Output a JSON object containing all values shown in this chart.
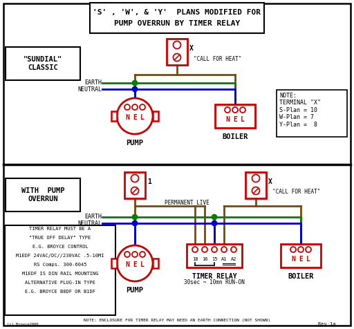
{
  "title_line1": "'S' , 'W', & 'Y'  PLANS MODIFIED FOR",
  "title_line2": "PUMP OVERRUN BY TIMER RELAY",
  "bg_color": "#ffffff",
  "red": "#cc0000",
  "brown": "#7B4A00",
  "green": "#008000",
  "blue": "#0000cc",
  "black": "#000000",
  "note_top": "NOTE:\nTERMINAL \"X\"\nS-Plan = 10\nW-Plan = 7\nY-Plan =  8",
  "note_bottom_lines": [
    "TIMER RELAY MUST BE A",
    "\"TRUE OFF DELAY\" TYPE",
    "E.G. BROYCE CONTROL",
    "M1EDF 24VAC/DC//230VAC .5-10MI",
    "RS Comps. 300-6045",
    "M1EDF IS DIN RAIL MOUNTING",
    "ALTERNATIVE PLUG-IN TYPE",
    "E.G. BROYCE B8DF OR B1DF"
  ],
  "bottom_note": "NOTE: ENCLOSURE FOR TIMER RELAY MAY NEED AN EARTH CONNECTION (NOT SHOWN)",
  "timer_sub": "30sec ~ 10mn RUN-ON",
  "copyright": "(c) Broyce2000",
  "rev": "Rev 1a"
}
